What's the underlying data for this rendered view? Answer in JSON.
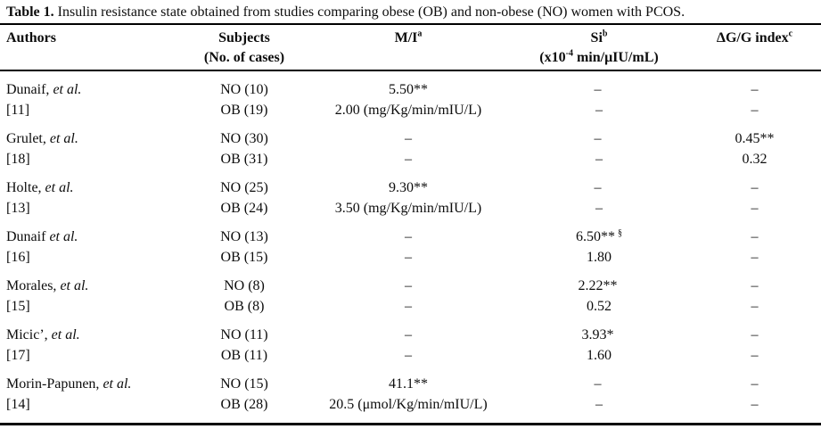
{
  "page": {
    "title_bold": "Table 1.",
    "title_rest": "Insulin resistance state obtained from studies comparing obese (OB) and non-obese (NO) women with PCOS."
  },
  "header": {
    "authors": "Authors",
    "subjects": "Subjects",
    "subjects_sub": "(No. of cases)",
    "mi": "M/I",
    "mi_sup": "a",
    "si": "Si",
    "si_sup": "b",
    "si_unit_pre": "(x10",
    "si_unit_sup": "-4",
    "si_unit_post": " min/μIU/mL)",
    "dg": "ΔG/G index",
    "dg_sup": "c"
  },
  "rows": [
    {
      "author": "Dunaif,",
      "etal": "et al.",
      "ref": "[11]",
      "no": {
        "subjects": "NO (10)",
        "mi": "5.50**",
        "si": "–",
        "dg": "–"
      },
      "ob": {
        "subjects": "OB (19)",
        "mi": "2.00 (mg/Kg/min/mIU/L)",
        "si": "–",
        "dg": "–"
      }
    },
    {
      "author": "Grulet,",
      "etal": "et al.",
      "ref": "[18]",
      "no": {
        "subjects": "NO (30)",
        "mi": "–",
        "si": "–",
        "dg": "0.45**"
      },
      "ob": {
        "subjects": "OB (31)",
        "mi": "–",
        "si": "–",
        "dg": "0.32"
      }
    },
    {
      "author": "Holte,",
      "etal": "et al.",
      "ref": "[13]",
      "no": {
        "subjects": "NO (25)",
        "mi": "9.30**",
        "si": "–",
        "dg": "–"
      },
      "ob": {
        "subjects": "OB (24)",
        "mi": "3.50 (mg/Kg/min/mIU/L)",
        "si": "–",
        "dg": "–"
      }
    },
    {
      "author": "Dunaif",
      "etal": "et al.",
      "ref": "[16]",
      "no": {
        "subjects": "NO (13)",
        "mi": "–",
        "si": "6.50**",
        "si_sup": "§",
        "dg": "–"
      },
      "ob": {
        "subjects": "OB (15)",
        "mi": "–",
        "si": "1.80",
        "dg": "–"
      }
    },
    {
      "author": "Morales,",
      "etal": "et al.",
      "ref": "[15]",
      "no": {
        "subjects": "NO (8)",
        "mi": "–",
        "si": "2.22**",
        "dg": "–"
      },
      "ob": {
        "subjects": "OB (8)",
        "mi": "–",
        "si": "0.52",
        "dg": "–"
      }
    },
    {
      "author": "Micic’,",
      "etal": "et al.",
      "ref": "[17]",
      "no": {
        "subjects": "NO (11)",
        "mi": "–",
        "si": "3.93*",
        "dg": "–"
      },
      "ob": {
        "subjects": "OB (11)",
        "mi": "–",
        "si": "1.60",
        "dg": "–"
      }
    },
    {
      "author": "Morin-Papunen,",
      "etal": "et al.",
      "ref": "[14]",
      "no": {
        "subjects": "NO (15)",
        "mi": "41.1**",
        "si": "–",
        "dg": "–"
      },
      "ob": {
        "subjects": "OB (28)",
        "mi": "20.5 (μmol/Kg/min/mIU/L)",
        "si": "–",
        "dg": "–"
      }
    }
  ]
}
